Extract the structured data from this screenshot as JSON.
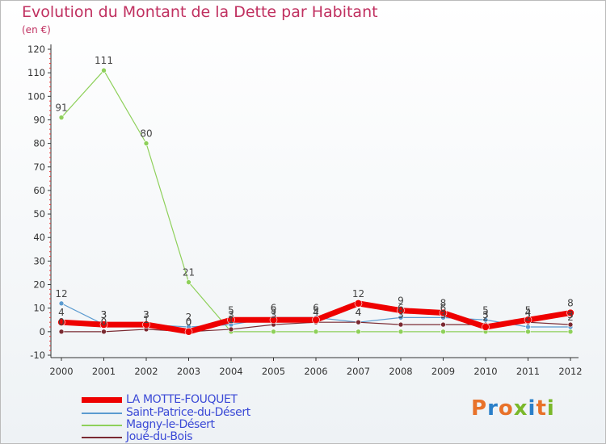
{
  "title": "Evolution du Montant de la Dette par Habitant",
  "unit": "(en €)",
  "logo": {
    "text": "Proxiti",
    "colors": [
      "#e8722a",
      "#2a7fc9",
      "#e8722a",
      "#7ab82a",
      "#2a7fc9",
      "#e8722a",
      "#7ab82a"
    ]
  },
  "chart_data": {
    "type": "line",
    "title": "Evolution du Montant de la Dette par Habitant",
    "ylabel": "(en €)",
    "xlabel": "",
    "ylim": [
      -10,
      120
    ],
    "yticks": [
      -10,
      0,
      10,
      20,
      30,
      40,
      50,
      60,
      70,
      80,
      90,
      100,
      110,
      120
    ],
    "categories": [
      "2000",
      "2001",
      "2002",
      "2003",
      "2004",
      "2005",
      "2006",
      "2007",
      "2008",
      "2009",
      "2010",
      "2011",
      "2012"
    ],
    "series": [
      {
        "name": "Magny-le-Désert",
        "color": "#8ed05a",
        "width": 1.2,
        "values": [
          91,
          111,
          80,
          21,
          0,
          0,
          0,
          0,
          0,
          0,
          0,
          0,
          0
        ],
        "labels": [
          "91",
          "111",
          "80",
          "21",
          "",
          "",
          "",
          "",
          "",
          "",
          "",
          "",
          ""
        ]
      },
      {
        "name": "Saint-Patrice-du-Désert",
        "color": "#5b9bd0",
        "width": 1.2,
        "values": [
          12,
          3,
          3,
          2,
          3,
          6,
          6,
          4,
          6,
          6,
          5,
          2,
          2
        ],
        "labels": [
          "12",
          "3",
          "3",
          "2",
          "3",
          "6",
          "6",
          "4",
          "6",
          "6",
          "5",
          "2",
          "2"
        ]
      },
      {
        "name": "Joué-du-Bois",
        "color": "#7a2a32",
        "width": 1.2,
        "values": [
          0,
          0,
          1,
          0,
          1,
          3,
          4,
          4,
          3,
          3,
          3,
          4,
          3
        ],
        "labels": [
          "0",
          "0",
          "1",
          "0",
          "1",
          "3",
          "4",
          "4",
          "3",
          "3",
          "3",
          "4",
          "3"
        ]
      },
      {
        "name": "LA MOTTE-FOUQUET",
        "color": "#ee0000",
        "width": 7,
        "values": [
          4,
          3,
          3,
          0,
          5,
          5,
          5,
          12,
          9,
          8,
          2,
          5,
          8
        ],
        "labels": [
          "4",
          "3",
          "3",
          "0",
          "5",
          "5",
          "5",
          "12",
          "9",
          "8",
          "2",
          "5",
          "8"
        ]
      }
    ],
    "legend": [
      "LA MOTTE-FOUQUET",
      "Saint-Patrice-du-Désert",
      "Magny-le-Désert",
      "Joué-du-Bois"
    ],
    "legend_position": "bottom-left",
    "grid": false
  }
}
